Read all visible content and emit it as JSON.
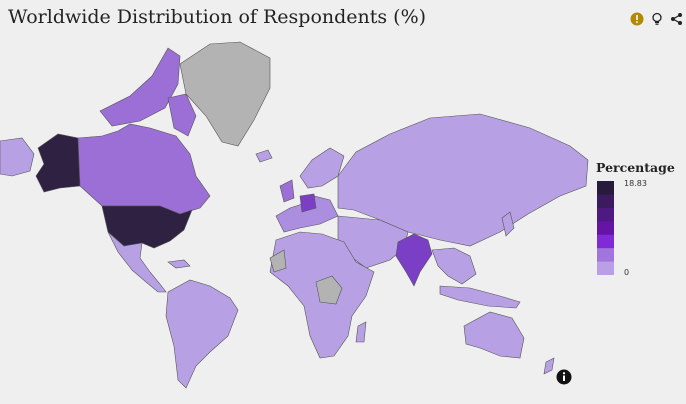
{
  "title": "Worldwide Distribution of Respondents (%)",
  "toolbar": {
    "icons": [
      "alert-icon",
      "lightbulb-icon",
      "share-icon"
    ],
    "alert_color": "#b08a00"
  },
  "legend": {
    "title": "Percentage",
    "max_label": "18.83",
    "min_label": "0",
    "color_scale": [
      "#281a3c",
      "#3b1a5e",
      "#4e1a82",
      "#6415a6",
      "#7f2bd6",
      "#a174de",
      "#b9a0e6"
    ]
  },
  "map_colors": {
    "no_data": "#b3b3b3",
    "low": "#b7a1e4",
    "mid_low": "#ab8ee0",
    "mid": "#9b6fd6",
    "mid_high": "#8a55d0",
    "high": "#7b3fc5",
    "very_high": "#2e2142"
  },
  "regions": [
    {
      "name": "United States",
      "level": "very_high"
    },
    {
      "name": "Alaska",
      "level": "very_high"
    },
    {
      "name": "Canada",
      "level": "mid"
    },
    {
      "name": "Greenland",
      "level": "no_data"
    },
    {
      "name": "India",
      "level": "high"
    },
    {
      "name": "Germany",
      "level": "high"
    },
    {
      "name": "United Kingdom",
      "level": "mid"
    },
    {
      "name": "Central Africa",
      "level": "no_data"
    },
    {
      "name": "Western Sahara",
      "level": "no_data"
    }
  ]
}
